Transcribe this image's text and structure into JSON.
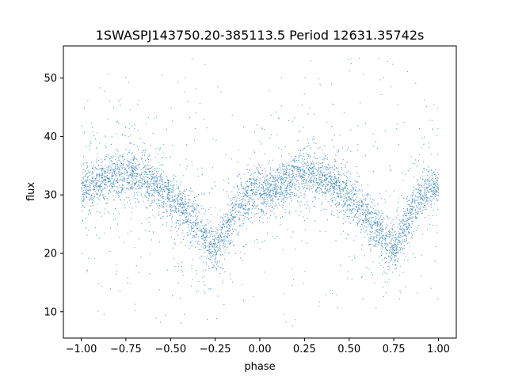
{
  "chart_data": {
    "type": "scatter",
    "title": "1SWASPJ143750.20-385113.5 Period 12631.35742s",
    "xlabel": "phase",
    "ylabel": "flux",
    "xlim": [
      -1.1,
      1.1
    ],
    "ylim": [
      5.5,
      55.5
    ],
    "xticks": [
      -1.0,
      -0.75,
      -0.5,
      -0.25,
      0.0,
      0.25,
      0.5,
      0.75,
      1.0
    ],
    "xtick_labels": [
      "−1.00",
      "−0.75",
      "−0.50",
      "−0.25",
      "0.00",
      "0.25",
      "0.50",
      "0.75",
      "1.00"
    ],
    "yticks": [
      10,
      20,
      30,
      40,
      50
    ],
    "ytick_labels": [
      "10",
      "20",
      "30",
      "40",
      "50"
    ],
    "grid": false,
    "marker_color": "#1f77b4",
    "phase_range": [
      -1.0,
      1.0
    ],
    "flux_range": [
      7.5,
      53.5
    ],
    "light_curve": {
      "description_of_trend": "double-humped periodic light curve",
      "maxima": [
        {
          "phase": -0.75,
          "flux": 33.5
        },
        {
          "phase": 0.25,
          "flux": 33.5
        }
      ],
      "minima": [
        {
          "phase": -0.25,
          "flux": 20.5
        },
        {
          "phase": 0.75,
          "flux": 20.5
        }
      ],
      "edge_flux": [
        {
          "phase": -1.0,
          "flux": 31.5
        },
        {
          "phase": 0.0,
          "flux": 30.5
        },
        {
          "phase": 1.0,
          "flux": 31.5
        }
      ],
      "band_scatter": 2.0
    }
  }
}
